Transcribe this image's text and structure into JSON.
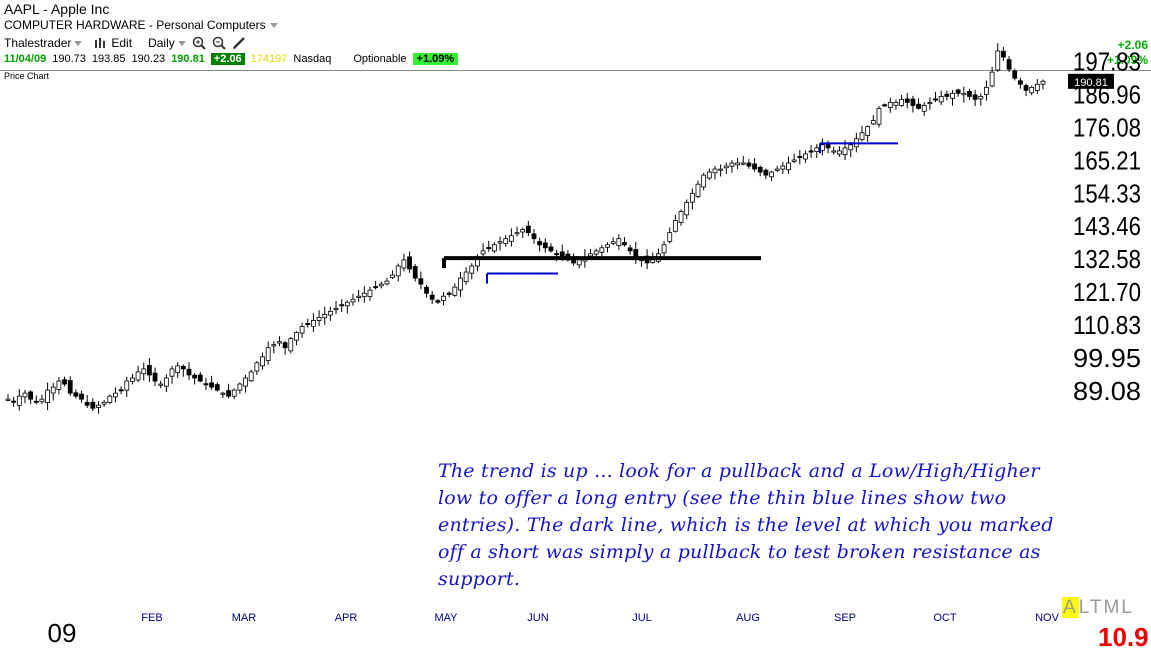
{
  "header": {
    "symbol_title": "AAPL - Apple Inc",
    "industry": "COMPUTER HARDWARE - Personal Computers",
    "toolbar": {
      "user": "Thalestrader",
      "edit": "Edit",
      "period": "Daily"
    },
    "quote": {
      "date": "11/04/09",
      "open": "190.73",
      "high": "193.85",
      "low": "190.23",
      "close": "190.81",
      "change": "+2.06",
      "volume": "174197",
      "exchange": "Nasdaq",
      "optionable": "Optionable",
      "pct": "+1.09%"
    },
    "right_change": "+2.06",
    "right_pct": "+1.09%"
  },
  "panel_label": "Price Chart",
  "price_tag": "190.81",
  "annotation": "The trend is up ... look for a pullback and a Low/High/Higher low to offer a long entry (see the thin blue lines show two entries).  The dark line, which is the level at which you marked off a short was simply a pullback to test broken resistance as support.",
  "footer": {
    "altml": "ALTML",
    "red_value": "10.9"
  },
  "colors": {
    "entry_line": "#0000cc",
    "resistance_line": "#000000",
    "annotation": "#1414c8",
    "up_change": "#00a000"
  },
  "chart_data": {
    "type": "candlestick",
    "symbol": "AAPL",
    "interval": "daily",
    "y_ticks": [
      "89.08",
      "99.95",
      "110.83",
      "121.70",
      "132.58",
      "143.46",
      "154.33",
      "165.21",
      "176.08",
      "186.96",
      "197.83"
    ],
    "ylim": [
      82,
      204
    ],
    "x_ticks": [
      "09",
      "FEB",
      "MAR",
      "APR",
      "MAY",
      "JUN",
      "JUL",
      "AUG",
      "SEP",
      "OCT",
      "NOV"
    ],
    "last_close": 190.81,
    "series": [
      {
        "name": "close_approx",
        "values": [
          86,
          85,
          87,
          88,
          86,
          85,
          86,
          89,
          90,
          92,
          91,
          88,
          87,
          86,
          84,
          83,
          84,
          85,
          87,
          88,
          89,
          92,
          93,
          95,
          96,
          94,
          92,
          91,
          93,
          96,
          97,
          96,
          94,
          93,
          92,
          91,
          90,
          89,
          88,
          87,
          89,
          91,
          93,
          95,
          98,
          100,
          103,
          104,
          105,
          103,
          106,
          108,
          110,
          111,
          112,
          113,
          114,
          115,
          116,
          117,
          118,
          119,
          120,
          121,
          122,
          123,
          124,
          125,
          127,
          130,
          132,
          129,
          126,
          124,
          121,
          119,
          118,
          120,
          121,
          123,
          126,
          128,
          130,
          133,
          135,
          136,
          137,
          138,
          139,
          140,
          141,
          142,
          141,
          139,
          137,
          136,
          135,
          134,
          133,
          132,
          131,
          132,
          133,
          134,
          135,
          136,
          137,
          138,
          139,
          137,
          135,
          133,
          132,
          131,
          132,
          134,
          137,
          141,
          145,
          148,
          151,
          154,
          157,
          160,
          161,
          162,
          162,
          163,
          164,
          164,
          164,
          163,
          162,
          161,
          160,
          161,
          162,
          163,
          164,
          165,
          166,
          167,
          168,
          169,
          170,
          169,
          168,
          168,
          169,
          170,
          172,
          174,
          176,
          178,
          182,
          183,
          184,
          184,
          185,
          184,
          183,
          182,
          183,
          184,
          185,
          186,
          186,
          187,
          187,
          187,
          186,
          185,
          186,
          189,
          194,
          201,
          199,
          195,
          192,
          190,
          188,
          189,
          190,
          191
        ]
      }
    ],
    "lines": [
      {
        "name": "resistance_support",
        "level": 132.58
      },
      {
        "name": "entry_1",
        "level": 127.5
      },
      {
        "name": "entry_2",
        "level": 170.5
      }
    ]
  }
}
